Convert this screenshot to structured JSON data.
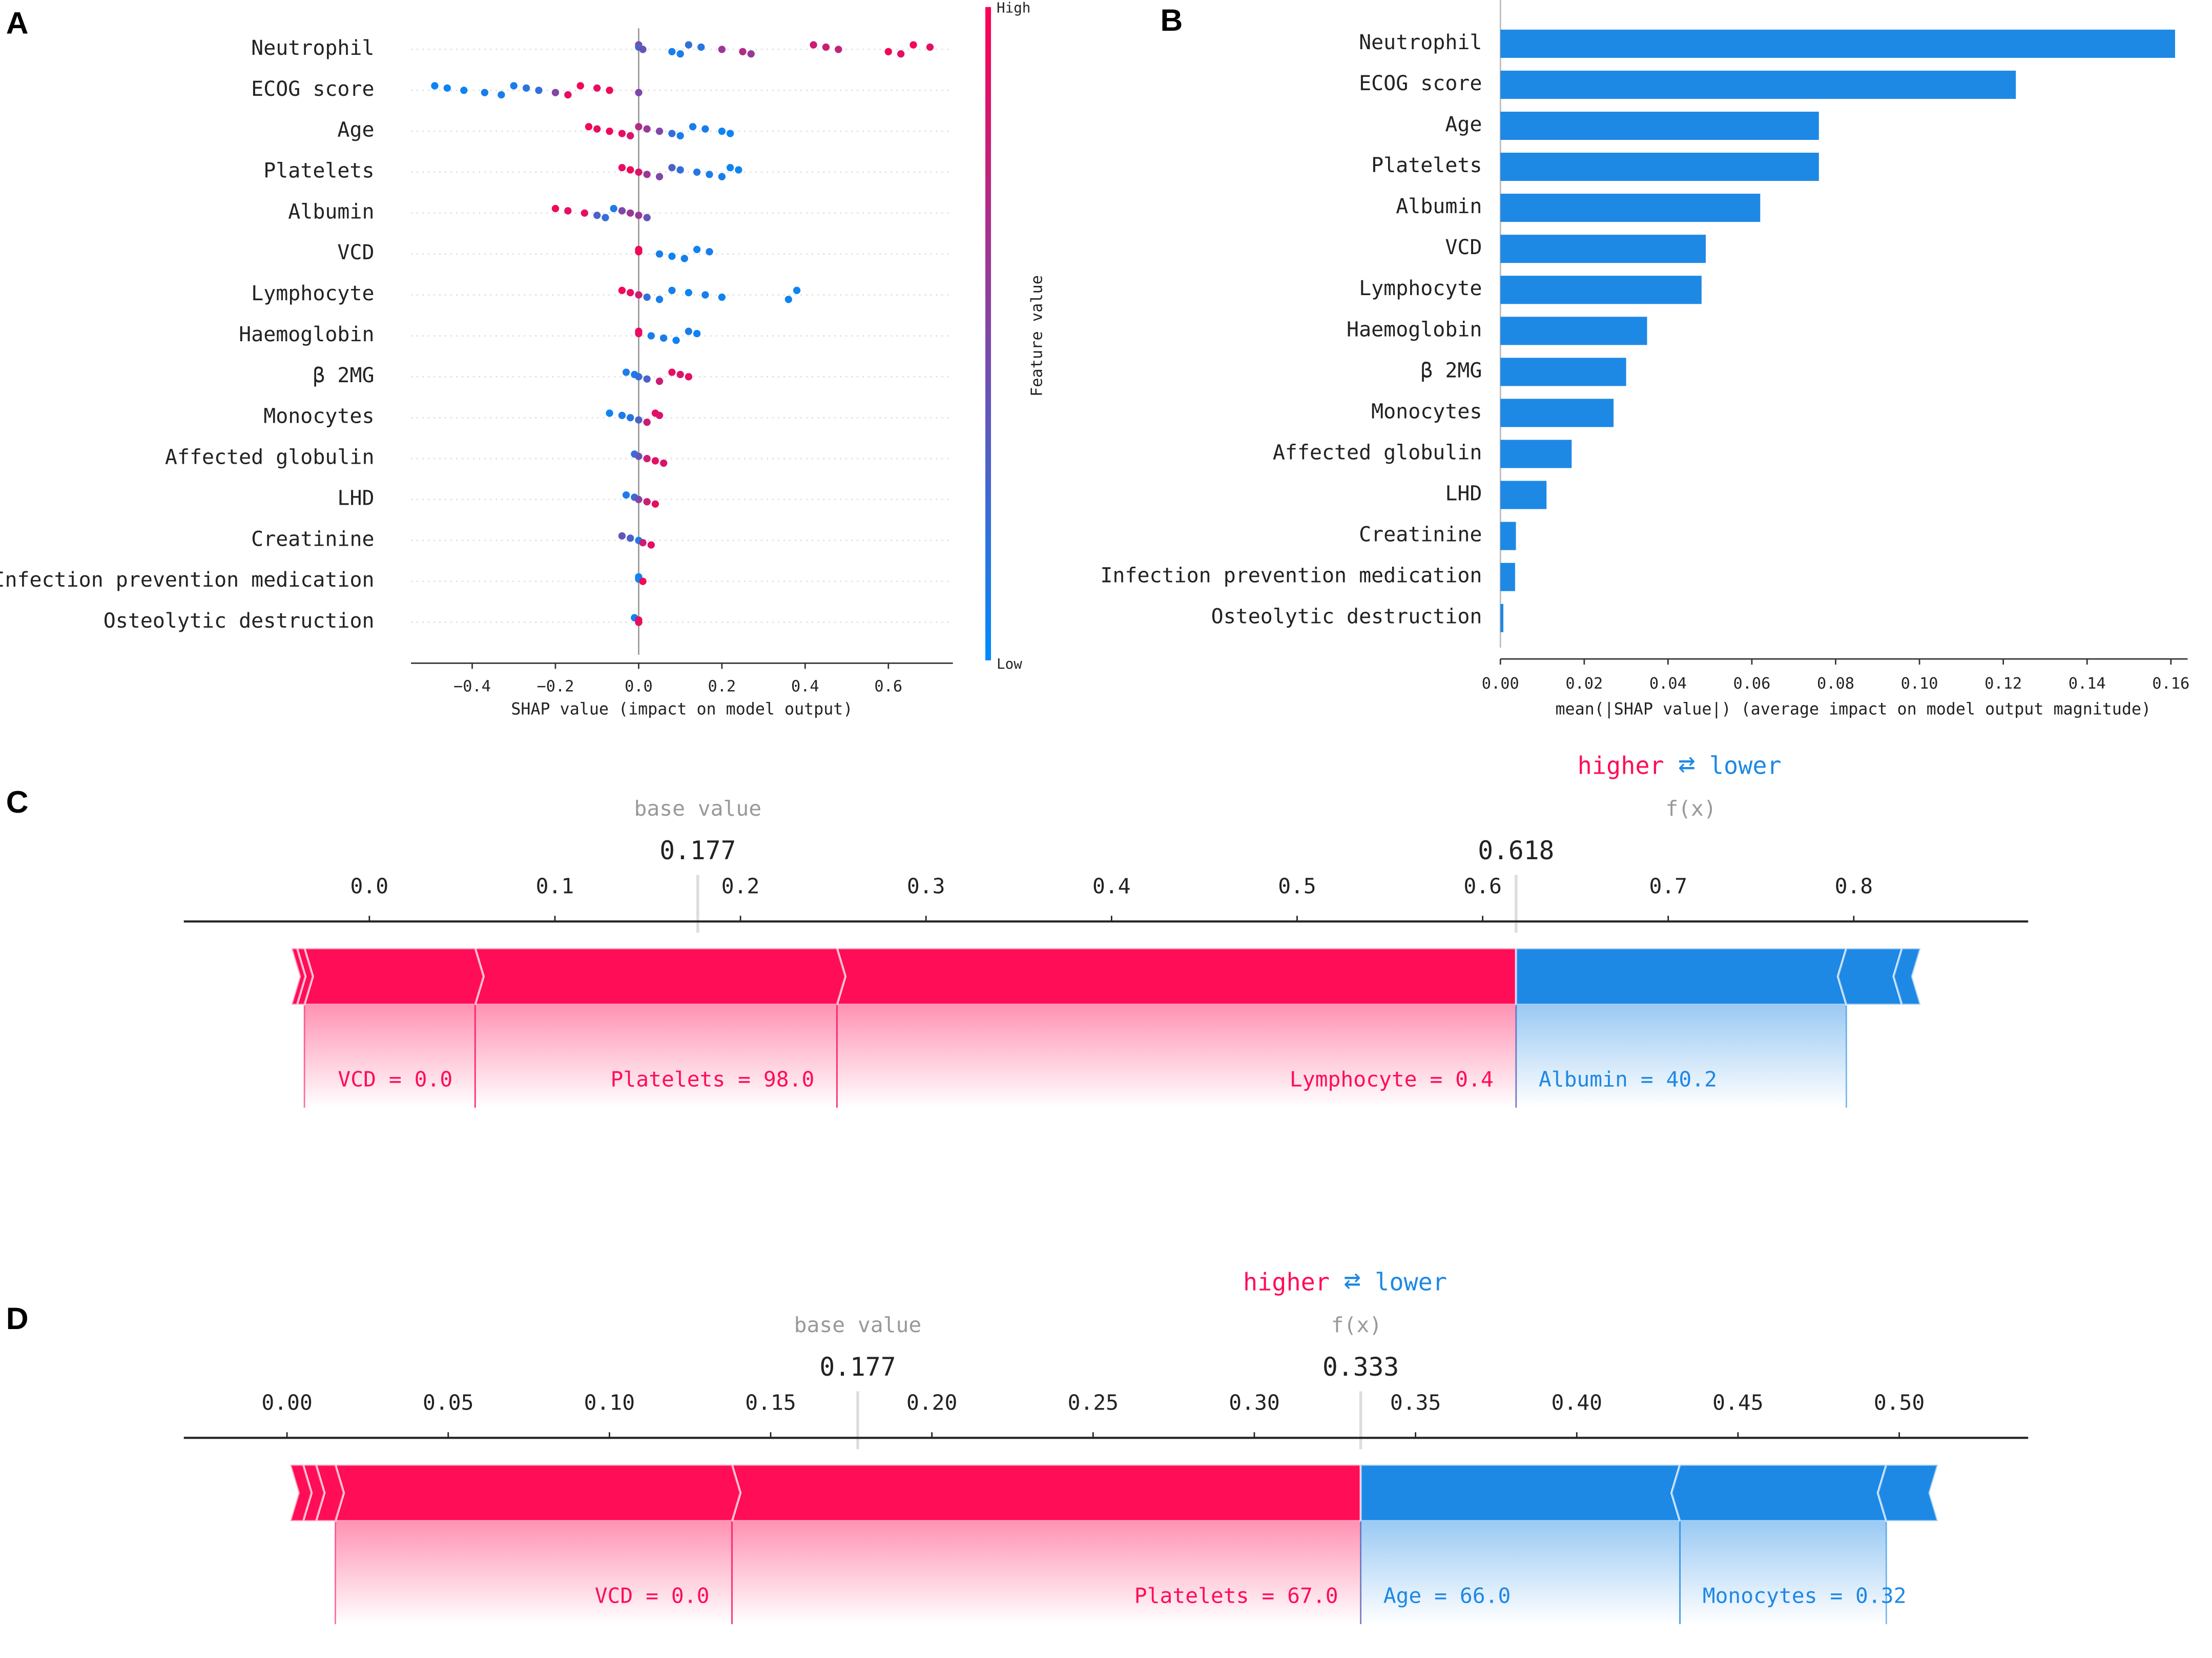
{
  "chart_data": [
    {
      "type": "beeswarm",
      "panel": "A",
      "xlabel": "SHAP value (impact on model output)",
      "xlim": [
        -0.547,
        0.755
      ],
      "xticks": [
        {
          "value": -0.4,
          "label": "−0.4"
        },
        {
          "value": -0.2,
          "label": "−0.2"
        },
        {
          "value": 0.0,
          "label": "0.0"
        },
        0.2,
        0.4,
        0.6
      ],
      "colorbar_label": "Feature value",
      "colorbar_high": "High",
      "colorbar_low": "Low",
      "colormap": [
        "#008bfb",
        "#ff0052"
      ],
      "features": [
        {
          "name": "Neutrophil",
          "shap": [
            0.0,
            0.0,
            0.01,
            0.08,
            0.1,
            0.12,
            0.15,
            0.2,
            0.25,
            0.27,
            0.42,
            0.45,
            0.48,
            0.6,
            0.63,
            0.66,
            0.7
          ],
          "feature_value": [
            0.5,
            0.3,
            0.4,
            0.1,
            0.1,
            0.2,
            0.15,
            0.6,
            0.7,
            0.6,
            0.8,
            0.8,
            0.75,
            0.95,
            0.9,
            0.95,
            0.9
          ]
        },
        {
          "name": "ECOG score",
          "shap": [
            -0.49,
            -0.46,
            -0.42,
            -0.37,
            -0.33,
            -0.3,
            -0.27,
            -0.24,
            -0.2,
            -0.17,
            -0.14,
            -0.1,
            -0.07,
            0.0
          ],
          "feature_value": [
            0.05,
            0.05,
            0.05,
            0.1,
            0.1,
            0.1,
            0.15,
            0.2,
            0.5,
            0.9,
            0.95,
            0.9,
            0.95,
            0.5
          ]
        },
        {
          "name": "Age",
          "shap": [
            -0.12,
            -0.1,
            -0.07,
            -0.04,
            -0.02,
            0.0,
            0.02,
            0.05,
            0.08,
            0.1,
            0.13,
            0.16,
            0.2,
            0.22
          ],
          "feature_value": [
            0.95,
            0.9,
            0.95,
            0.9,
            0.85,
            0.7,
            0.6,
            0.5,
            0.2,
            0.1,
            0.1,
            0.1,
            0.05,
            0.05
          ]
        },
        {
          "name": "Platelets",
          "shap": [
            -0.04,
            -0.02,
            0.0,
            0.02,
            0.05,
            0.08,
            0.1,
            0.14,
            0.17,
            0.2,
            0.22,
            0.24
          ],
          "feature_value": [
            0.9,
            0.95,
            0.85,
            0.6,
            0.5,
            0.3,
            0.2,
            0.15,
            0.1,
            0.1,
            0.05,
            0.05
          ]
        },
        {
          "name": "Albumin",
          "shap": [
            -0.2,
            -0.17,
            -0.13,
            -0.1,
            -0.08,
            -0.06,
            -0.04,
            -0.02,
            0.0,
            0.02
          ],
          "feature_value": [
            0.95,
            0.9,
            0.9,
            0.3,
            0.2,
            0.1,
            0.5,
            0.6,
            0.6,
            0.4
          ]
        },
        {
          "name": "VCD",
          "shap": [
            0.0,
            0.0,
            0.05,
            0.08,
            0.11,
            0.14,
            0.17
          ],
          "feature_value": [
            0.95,
            0.95,
            0.1,
            0.05,
            0.1,
            0.05,
            0.1
          ]
        },
        {
          "name": "Lymphocyte",
          "shap": [
            -0.04,
            -0.02,
            0.0,
            0.02,
            0.05,
            0.08,
            0.12,
            0.16,
            0.2,
            0.36,
            0.38
          ],
          "feature_value": [
            0.95,
            0.9,
            0.8,
            0.2,
            0.1,
            0.1,
            0.05,
            0.1,
            0.05,
            0.05,
            0.05
          ]
        },
        {
          "name": "Haemoglobin",
          "shap": [
            0.0,
            0.0,
            0.03,
            0.06,
            0.09,
            0.12,
            0.14
          ],
          "feature_value": [
            0.95,
            0.9,
            0.1,
            0.1,
            0.05,
            0.1,
            0.05
          ]
        },
        {
          "name": "β 2MG",
          "shap": [
            -0.03,
            -0.01,
            0.0,
            0.02,
            0.05,
            0.08,
            0.1,
            0.12
          ],
          "feature_value": [
            0.1,
            0.1,
            0.2,
            0.3,
            0.8,
            0.9,
            0.85,
            0.9
          ]
        },
        {
          "name": "Monocytes",
          "shap": [
            -0.07,
            -0.04,
            -0.02,
            0.0,
            0.02,
            0.04,
            0.05
          ],
          "feature_value": [
            0.05,
            0.1,
            0.15,
            0.3,
            0.8,
            0.9,
            0.85
          ]
        },
        {
          "name": "Affected globulin",
          "shap": [
            -0.01,
            0.0,
            0.02,
            0.04,
            0.06
          ],
          "feature_value": [
            0.2,
            0.4,
            0.8,
            0.9,
            0.85
          ]
        },
        {
          "name": "LHD",
          "shap": [
            -0.03,
            -0.01,
            0.0,
            0.02,
            0.04
          ],
          "feature_value": [
            0.1,
            0.2,
            0.5,
            0.8,
            0.9
          ]
        },
        {
          "name": "Creatinine",
          "shap": [
            -0.04,
            -0.02,
            0.0,
            0.01,
            0.03
          ],
          "feature_value": [
            0.4,
            0.3,
            0.1,
            0.8,
            0.9
          ]
        },
        {
          "name": "Infection prevention medication",
          "shap": [
            0.0,
            0.0,
            0.01
          ],
          "feature_value": [
            0.05,
            0.05,
            0.95
          ]
        },
        {
          "name": "Osteolytic destruction",
          "shap": [
            -0.01,
            0.0,
            0.0
          ],
          "feature_value": [
            0.05,
            0.95,
            0.9
          ]
        }
      ]
    },
    {
      "type": "bar",
      "orientation": "horizontal",
      "panel": "B",
      "xlabel": "mean(|SHAP value|) (average impact on model output magnitude)",
      "categories": [
        "Neutrophil",
        "ECOG score",
        "Age",
        "Platelets",
        "Albumin",
        "VCD",
        "Lymphocyte",
        "Haemoglobin",
        "β 2MG",
        "Monocytes",
        "Affected globulin",
        "LHD",
        "Creatinine",
        "Infection prevention medication",
        "Osteolytic destruction"
      ],
      "values": [
        0.161,
        0.123,
        0.076,
        0.076,
        0.062,
        0.049,
        0.048,
        0.035,
        0.03,
        0.027,
        0.017,
        0.011,
        0.0037,
        0.0035,
        0.0007
      ],
      "color": "#1e88e5",
      "xlim": [
        0,
        0.164
      ],
      "xticks": [
        {
          "value": 0,
          "label": "0.00"
        },
        0.02,
        0.04,
        0.06,
        0.08,
        {
          "value": 0.1,
          "label": "0.10"
        },
        0.12,
        0.14,
        0.16
      ]
    },
    {
      "type": "force",
      "panel": "C",
      "higher_label": "higher",
      "arrow": "⇄",
      "lower_label": "lower",
      "base_label": "base value",
      "fx_label": "f(x)",
      "base_value": 0.177,
      "fx": 0.618,
      "xlim": [
        -0.1,
        0.894
      ],
      "xticks": [
        {
          "value": 0,
          "label": "0.0"
        },
        0.1,
        0.2,
        0.3,
        0.4,
        0.5,
        0.6,
        0.7,
        0.8
      ],
      "colors": {
        "positive": "#ff0d57",
        "negative": "#1e88e5"
      },
      "positive": [
        {
          "label": "Lymphocyte = 0.4",
          "effect": 0.366
        },
        {
          "label": "Platelets = 98.0",
          "effect": 0.195
        },
        {
          "label": "VCD = 0.0",
          "effect": 0.092
        },
        {
          "effect": 0.004
        },
        {
          "effect": 0.003
        }
      ],
      "negative": [
        {
          "label": "Albumin = 40.2",
          "effect": 0.178
        },
        {
          "effect": 0.03
        },
        {
          "effect": 0.01
        }
      ]
    },
    {
      "type": "force",
      "panel": "D",
      "higher_label": "higher",
      "arrow": "⇄",
      "lower_label": "lower",
      "base_label": "base value",
      "fx_label": "f(x)",
      "base_value": 0.177,
      "fx": 0.333,
      "xlim": [
        -0.032,
        0.54
      ],
      "xticks": [
        {
          "value": 0,
          "label": "0.00"
        },
        0.05,
        {
          "value": 0.1,
          "label": "0.10"
        },
        0.15,
        {
          "value": 0.2,
          "label": "0.20"
        },
        0.25,
        {
          "value": 0.3,
          "label": "0.30"
        },
        0.35,
        {
          "value": 0.4,
          "label": "0.40"
        },
        0.45,
        {
          "value": 0.5,
          "label": "0.50"
        }
      ],
      "colors": {
        "positive": "#ff0d57",
        "negative": "#1e88e5"
      },
      "positive": [
        {
          "label": "Platelets = 67.0",
          "effect": 0.195
        },
        {
          "label": "VCD = 0.0",
          "effect": 0.123
        },
        {
          "effect": 0.006
        },
        {
          "effect": 0.004
        },
        {
          "effect": 0.004
        }
      ],
      "negative": [
        {
          "label": "Age = 66.0",
          "effect": 0.099
        },
        {
          "label": "Monocytes = 0.32",
          "effect": 0.064
        },
        {
          "effect": 0.016
        }
      ]
    }
  ]
}
